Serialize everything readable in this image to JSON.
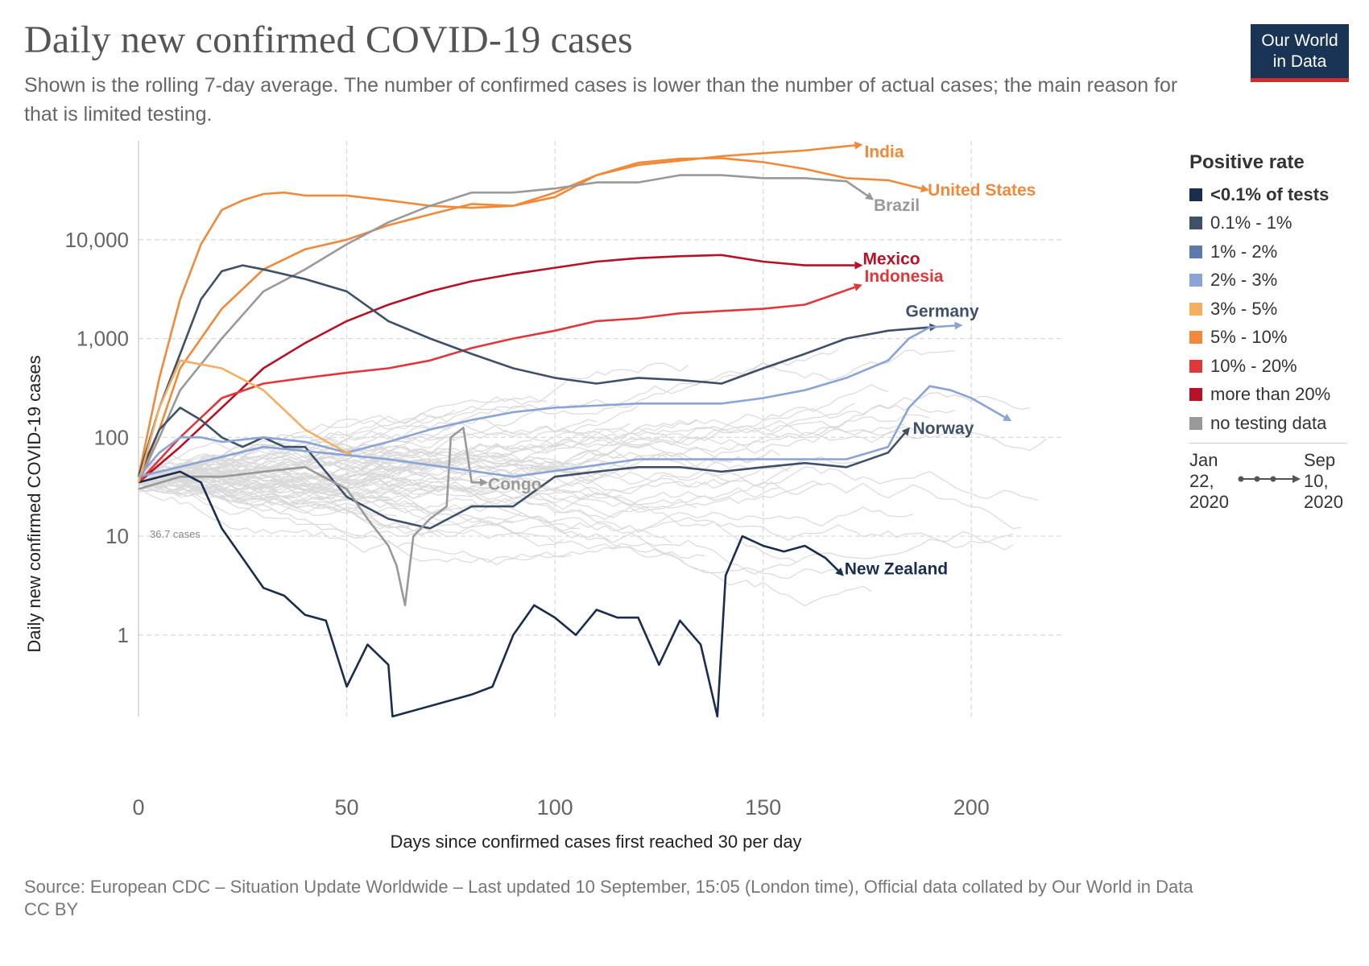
{
  "title": "Daily new confirmed COVID-19 cases",
  "subtitle": "Shown is the rolling 7-day average. The number of confirmed cases is lower than the number of actual cases; the main reason for that is limited testing.",
  "logo": {
    "line1": "Our World",
    "line2": "in Data"
  },
  "footer": {
    "source": "Source: European CDC – Situation Update Worldwide – Last updated 10 September, 15:05 (London time), Official data collated by Our World in Data",
    "license": "CC BY"
  },
  "legend": {
    "title": "Positive rate",
    "items": [
      {
        "label": "<0.1% of tests",
        "color": "#1a2d4d",
        "bold": true
      },
      {
        "label": "0.1% - 1%",
        "color": "#3f5068"
      },
      {
        "label": "1% - 2%",
        "color": "#5d7aae"
      },
      {
        "label": "2% - 3%",
        "color": "#8aa4d6"
      },
      {
        "label": "3% - 5%",
        "color": "#f5ad60"
      },
      {
        "label": "5% - 10%",
        "color": "#f08a3a"
      },
      {
        "label": "10% - 20%",
        "color": "#e0383a"
      },
      {
        "label": "more than 20%",
        "color": "#b51228"
      },
      {
        "label": "no testing data",
        "color": "#999999"
      }
    ],
    "time_start": [
      "Jan",
      "22,",
      "2020"
    ],
    "time_end": [
      "Sep",
      "10,",
      "2020"
    ]
  },
  "chart_data": {
    "type": "line",
    "title": "Daily new confirmed COVID-19 cases",
    "xlabel": "Days since confirmed cases first reached 30 per day",
    "ylabel": "Daily new confirmed COVID-19 cases",
    "y_scale": "log",
    "xlim": [
      0,
      222
    ],
    "ylim": [
      0.15,
      100000
    ],
    "x_ticks": [
      0,
      50,
      100,
      150,
      200
    ],
    "x_tick_labels": [
      "0",
      "50",
      "100",
      "150",
      "200"
    ],
    "y_ticks": [
      1,
      10,
      100,
      1000,
      10000
    ],
    "y_tick_labels": [
      "1",
      "10",
      "100",
      "1,000",
      "10,000"
    ],
    "grid": true,
    "start_annotation": "36.7 cases",
    "series": [
      {
        "name": "India",
        "color": "#f08a3a",
        "points": [
          [
            0,
            35
          ],
          [
            5,
            120
          ],
          [
            10,
            500
          ],
          [
            20,
            2000
          ],
          [
            30,
            5000
          ],
          [
            40,
            8000
          ],
          [
            50,
            10000
          ],
          [
            60,
            14000
          ],
          [
            70,
            18000
          ],
          [
            80,
            23000
          ],
          [
            90,
            22000
          ],
          [
            100,
            30000
          ],
          [
            110,
            45000
          ],
          [
            120,
            57000
          ],
          [
            130,
            63000
          ],
          [
            140,
            70000
          ],
          [
            150,
            75000
          ],
          [
            160,
            80000
          ],
          [
            172,
            90000
          ]
        ]
      },
      {
        "name": "United States",
        "color": "#f08a3a",
        "points": [
          [
            0,
            40
          ],
          [
            5,
            400
          ],
          [
            10,
            2500
          ],
          [
            15,
            9000
          ],
          [
            20,
            20000
          ],
          [
            25,
            25000
          ],
          [
            30,
            29000
          ],
          [
            35,
            30000
          ],
          [
            40,
            28000
          ],
          [
            50,
            28000
          ],
          [
            60,
            25000
          ],
          [
            70,
            22000
          ],
          [
            80,
            21000
          ],
          [
            90,
            22000
          ],
          [
            100,
            27000
          ],
          [
            110,
            45000
          ],
          [
            120,
            60000
          ],
          [
            130,
            66000
          ],
          [
            140,
            67000
          ],
          [
            150,
            61000
          ],
          [
            160,
            52000
          ],
          [
            170,
            42000
          ],
          [
            180,
            40000
          ],
          [
            188,
            33000
          ]
        ]
      },
      {
        "name": "Brazil",
        "color": "#999999",
        "points": [
          [
            0,
            35
          ],
          [
            5,
            100
          ],
          [
            10,
            300
          ],
          [
            20,
            1000
          ],
          [
            30,
            3000
          ],
          [
            40,
            5000
          ],
          [
            50,
            9000
          ],
          [
            60,
            15000
          ],
          [
            70,
            22000
          ],
          [
            80,
            30000
          ],
          [
            90,
            30000
          ],
          [
            100,
            33000
          ],
          [
            110,
            38000
          ],
          [
            120,
            38000
          ],
          [
            130,
            45000
          ],
          [
            140,
            45000
          ],
          [
            150,
            42000
          ],
          [
            160,
            42000
          ],
          [
            170,
            39000
          ],
          [
            175,
            28000
          ]
        ]
      },
      {
        "name": "Mexico",
        "color": "#b51228",
        "points": [
          [
            0,
            35
          ],
          [
            10,
            80
          ],
          [
            20,
            200
          ],
          [
            30,
            500
          ],
          [
            40,
            900
          ],
          [
            50,
            1500
          ],
          [
            60,
            2200
          ],
          [
            70,
            3000
          ],
          [
            80,
            3800
          ],
          [
            90,
            4500
          ],
          [
            100,
            5200
          ],
          [
            110,
            6000
          ],
          [
            120,
            6500
          ],
          [
            130,
            6800
          ],
          [
            140,
            7000
          ],
          [
            150,
            6000
          ],
          [
            160,
            5500
          ],
          [
            172,
            5500
          ]
        ]
      },
      {
        "name": "Indonesia",
        "color": "#e0383a",
        "points": [
          [
            0,
            35
          ],
          [
            10,
            100
          ],
          [
            20,
            250
          ],
          [
            30,
            350
          ],
          [
            40,
            400
          ],
          [
            50,
            450
          ],
          [
            60,
            500
          ],
          [
            70,
            600
          ],
          [
            80,
            800
          ],
          [
            90,
            1000
          ],
          [
            100,
            1200
          ],
          [
            110,
            1500
          ],
          [
            120,
            1600
          ],
          [
            130,
            1800
          ],
          [
            140,
            1900
          ],
          [
            150,
            2000
          ],
          [
            160,
            2200
          ],
          [
            172,
            3300
          ]
        ]
      },
      {
        "name": "Germany",
        "color": "#3f5068",
        "points": [
          [
            0,
            40
          ],
          [
            5,
            200
          ],
          [
            10,
            700
          ],
          [
            15,
            2500
          ],
          [
            20,
            4800
          ],
          [
            25,
            5500
          ],
          [
            30,
            5000
          ],
          [
            40,
            4000
          ],
          [
            50,
            3000
          ],
          [
            60,
            1500
          ],
          [
            70,
            1000
          ],
          [
            80,
            700
          ],
          [
            90,
            500
          ],
          [
            100,
            400
          ],
          [
            110,
            350
          ],
          [
            120,
            400
          ],
          [
            130,
            380
          ],
          [
            140,
            350
          ],
          [
            150,
            500
          ],
          [
            160,
            700
          ],
          [
            170,
            1000
          ],
          [
            180,
            1200
          ],
          [
            190,
            1300
          ]
        ]
      },
      {
        "name": "Norway",
        "color": "#3f5068",
        "points": [
          [
            0,
            40
          ],
          [
            5,
            120
          ],
          [
            10,
            200
          ],
          [
            15,
            150
          ],
          [
            20,
            100
          ],
          [
            25,
            80
          ],
          [
            30,
            100
          ],
          [
            35,
            80
          ],
          [
            40,
            80
          ],
          [
            50,
            25
          ],
          [
            60,
            15
          ],
          [
            70,
            12
          ],
          [
            80,
            20
          ],
          [
            90,
            20
          ],
          [
            100,
            40
          ],
          [
            110,
            45
          ],
          [
            120,
            50
          ],
          [
            130,
            50
          ],
          [
            140,
            45
          ],
          [
            150,
            50
          ],
          [
            160,
            55
          ],
          [
            170,
            50
          ],
          [
            180,
            70
          ],
          [
            184,
            110
          ]
        ]
      },
      {
        "name": "Congo",
        "color": "#999999",
        "points": [
          [
            0,
            30
          ],
          [
            10,
            40
          ],
          [
            20,
            40
          ],
          [
            30,
            45
          ],
          [
            40,
            50
          ],
          [
            50,
            30
          ],
          [
            55,
            15
          ],
          [
            60,
            8
          ],
          [
            62,
            5
          ],
          [
            64,
            2
          ],
          [
            66,
            10
          ],
          [
            70,
            15
          ],
          [
            74,
            20
          ],
          [
            75,
            100
          ],
          [
            78,
            125
          ],
          [
            80,
            35
          ],
          [
            82,
            35
          ]
        ]
      },
      {
        "name": "New Zealand",
        "color": "#1a2d4d",
        "points": [
          [
            0,
            35
          ],
          [
            10,
            45
          ],
          [
            15,
            35
          ],
          [
            20,
            12
          ],
          [
            25,
            6
          ],
          [
            30,
            3
          ],
          [
            35,
            2.5
          ],
          [
            40,
            1.6
          ],
          [
            45,
            1.4
          ],
          [
            50,
            0.3
          ],
          [
            55,
            0.8
          ],
          [
            60,
            0.5
          ],
          [
            61,
            0.15
          ],
          [
            80,
            0.25
          ],
          [
            85,
            0.3
          ],
          [
            90,
            1
          ],
          [
            95,
            2
          ],
          [
            100,
            1.5
          ],
          [
            105,
            1
          ],
          [
            110,
            1.8
          ],
          [
            115,
            1.5
          ],
          [
            120,
            1.5
          ],
          [
            125,
            0.5
          ],
          [
            130,
            1.4
          ],
          [
            135,
            0.8
          ],
          [
            139,
            0.15
          ],
          [
            141,
            4
          ],
          [
            145,
            10
          ],
          [
            150,
            8
          ],
          [
            155,
            7
          ],
          [
            160,
            8
          ],
          [
            165,
            6
          ],
          [
            168,
            4.5
          ]
        ]
      },
      {
        "name": "",
        "color": "#8aa4d6",
        "points": [
          [
            0,
            40
          ],
          [
            5,
            70
          ],
          [
            10,
            100
          ],
          [
            15,
            100
          ],
          [
            20,
            90
          ],
          [
            30,
            100
          ],
          [
            40,
            90
          ],
          [
            50,
            70
          ],
          [
            60,
            90
          ],
          [
            70,
            120
          ],
          [
            80,
            150
          ],
          [
            90,
            180
          ],
          [
            100,
            200
          ],
          [
            120,
            220
          ],
          [
            140,
            220
          ],
          [
            150,
            250
          ],
          [
            160,
            300
          ],
          [
            170,
            400
          ],
          [
            180,
            600
          ],
          [
            185,
            1000
          ],
          [
            190,
            1300
          ],
          [
            196,
            1350
          ]
        ]
      },
      {
        "name": "",
        "color": "#f5ad60",
        "points": [
          [
            0,
            35
          ],
          [
            5,
            200
          ],
          [
            10,
            600
          ],
          [
            20,
            500
          ],
          [
            30,
            300
          ],
          [
            40,
            120
          ],
          [
            50,
            70
          ]
        ]
      },
      {
        "name": "",
        "color": "#8aa4d6",
        "points": [
          [
            0,
            40
          ],
          [
            30,
            80
          ],
          [
            60,
            60
          ],
          [
            90,
            40
          ],
          [
            120,
            60
          ],
          [
            150,
            60
          ],
          [
            170,
            60
          ],
          [
            180,
            80
          ],
          [
            185,
            200
          ],
          [
            190,
            330
          ],
          [
            195,
            300
          ],
          [
            200,
            250
          ],
          [
            208,
            160
          ]
        ]
      }
    ]
  }
}
